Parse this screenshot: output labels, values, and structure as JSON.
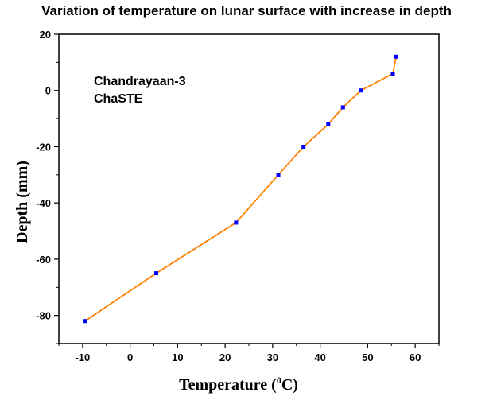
{
  "chart_data": {
    "type": "line",
    "title": "Variation of temperature on lunar surface with increase in depth",
    "xlabel": "Temperature (",
    "xlabel_sup": "0",
    "xlabel_unit": "C)",
    "ylabel": "Depth (mm)",
    "xlim": [
      -15,
      65
    ],
    "ylim": [
      -90,
      20
    ],
    "x_ticks": [
      -10,
      0,
      10,
      20,
      30,
      40,
      50,
      60
    ],
    "y_ticks": [
      20,
      0,
      -20,
      -40,
      -60,
      -80
    ],
    "x_tick_labels": [
      "-10",
      "0",
      "10",
      "20",
      "30",
      "40",
      "50",
      "60"
    ],
    "y_tick_labels": [
      "20",
      "0",
      "-20",
      "-40",
      "-60",
      "-80"
    ],
    "annotations": [
      "Chandrayaan-3",
      "ChaSTE"
    ],
    "grid": false,
    "line_color": "#FF8000",
    "marker_color": "#0000FF",
    "series": [
      {
        "x": [
          -9.5,
          5.5,
          22.3,
          31.2,
          36.5,
          41.7,
          44.8,
          48.6,
          55.3,
          56.0
        ],
        "y": [
          -82,
          -65,
          -47,
          -30,
          -20,
          -12,
          -6,
          0,
          6,
          12
        ]
      }
    ]
  }
}
